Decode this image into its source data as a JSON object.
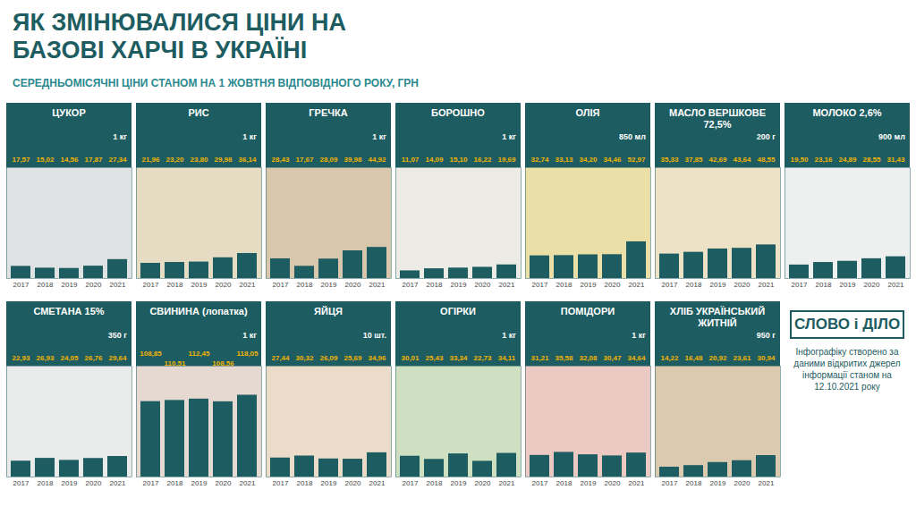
{
  "title": "ЯК ЗМІНЮВАЛИСЯ ЦІНИ НА БАЗОВІ ХАРЧІ В УКРАЇНІ",
  "subtitle": "СЕРЕДНЬОМІСЯЧНІ ЦІНИ СТАНОМ НА 1 ЖОВТНЯ ВІДПОВІДНОГО РОКУ, ГРН",
  "logo": "СЛОВО і ДІЛО",
  "caption": "Інфографіку створено за даними відкритих джерел інформації станом на 12.10.2021 року",
  "chart_data": [
    {
      "type": "bar",
      "title": "ЦУКОР",
      "subtitle": "1 кг",
      "categories": [
        "2017",
        "2018",
        "2019",
        "2020",
        "2021"
      ],
      "values": [
        17.57,
        15.02,
        14.56,
        17.87,
        27.34
      ],
      "value_labels": [
        "17,57",
        "15,02",
        "14,56",
        "17,87",
        "27,34"
      ],
      "color": "#1d5c60",
      "ylim": [
        0,
        160
      ],
      "yticks": [],
      "data_labels": true,
      "tick_labels": "x",
      "grid": false
    },
    {
      "type": "bar",
      "title": "РИС",
      "subtitle": "1 кг",
      "categories": [
        "2017",
        "2018",
        "2019",
        "2020",
        "2021"
      ],
      "values": [
        21.96,
        23.2,
        23.8,
        29.98,
        36.14
      ],
      "value_labels": [
        "21,96",
        "23,20",
        "23,80",
        "29,98",
        "36,14"
      ],
      "color": "#1d5c60",
      "ylim": [
        0,
        160
      ],
      "yticks": [],
      "data_labels": true,
      "tick_labels": "x",
      "grid": false
    },
    {
      "type": "bar",
      "title": "ГРЕЧКА",
      "subtitle": "1 кг",
      "categories": [
        "2017",
        "2018",
        "2019",
        "2020",
        "2021"
      ],
      "values": [
        28.43,
        17.67,
        28.09,
        39.98,
        44.92
      ],
      "value_labels": [
        "28,43",
        "17,67",
        "28,09",
        "39,98",
        "44,92"
      ],
      "color": "#1d5c60",
      "ylim": [
        0,
        160
      ],
      "yticks": [],
      "data_labels": true,
      "tick_labels": "x",
      "grid": false
    },
    {
      "type": "bar",
      "title": "БОРОШНО",
      "subtitle": "1 кг",
      "categories": [
        "2017",
        "2018",
        "2019",
        "2020",
        "2021"
      ],
      "values": [
        11.07,
        14.09,
        15.1,
        16.22,
        19.69
      ],
      "value_labels": [
        "11,07",
        "14,09",
        "15,10",
        "16,22",
        "19,69"
      ],
      "color": "#1d5c60",
      "ylim": [
        0,
        160
      ],
      "yticks": [],
      "data_labels": true,
      "tick_labels": "x",
      "grid": false
    },
    {
      "type": "bar",
      "title": "ОЛІЯ",
      "subtitle": "850 мл",
      "categories": [
        "2017",
        "2018",
        "2019",
        "2020",
        "2021"
      ],
      "values": [
        32.74,
        33.13,
        34.2,
        34.46,
        52.97
      ],
      "value_labels": [
        "32,74",
        "33,13",
        "34,20",
        "34,46",
        "52,97"
      ],
      "color": "#1d5c60",
      "ylim": [
        0,
        160
      ],
      "yticks": [],
      "data_labels": true,
      "tick_labels": "x",
      "grid": false
    },
    {
      "type": "bar",
      "title": "МАСЛО ВЕРШКОВЕ 72,5%",
      "subtitle": "200 г",
      "categories": [
        "2017",
        "2018",
        "2019",
        "2020",
        "2021"
      ],
      "values": [
        35.33,
        37.85,
        42.69,
        43.64,
        48.55
      ],
      "value_labels": [
        "35,33",
        "37,85",
        "42,69",
        "43,64",
        "48,55"
      ],
      "color": "#1d5c60",
      "ylim": [
        0,
        160
      ],
      "yticks": [],
      "data_labels": true,
      "tick_labels": "x",
      "grid": false
    },
    {
      "type": "bar",
      "title": "МОЛОКО 2,6%",
      "subtitle": "900 мл",
      "categories": [
        "2017",
        "2018",
        "2019",
        "2020",
        "2021"
      ],
      "values": [
        19.5,
        23.16,
        24.89,
        28.55,
        31.43
      ],
      "value_labels": [
        "19,50",
        "23,16",
        "24,89",
        "28,55",
        "31,43"
      ],
      "color": "#1d5c60",
      "ylim": [
        0,
        160
      ],
      "yticks": [],
      "data_labels": true,
      "tick_labels": "x",
      "grid": false
    },
    {
      "type": "bar",
      "title": "СМЕТАНА 15%",
      "subtitle": "350 г",
      "categories": [
        "2017",
        "2018",
        "2019",
        "2020",
        "2021"
      ],
      "values": [
        22.93,
        26.93,
        24.05,
        26.76,
        29.64
      ],
      "value_labels": [
        "22,93",
        "26,93",
        "24,05",
        "26,76",
        "29,64"
      ],
      "color": "#1d5c60",
      "ylim": [
        0,
        160
      ],
      "yticks": [],
      "data_labels": true,
      "tick_labels": "x",
      "grid": false
    },
    {
      "type": "bar",
      "title": "СВИНИНА (лопатка)",
      "subtitle": "1 кг",
      "categories": [
        "2017",
        "2018",
        "2019",
        "2020",
        "2021"
      ],
      "values": [
        108.85,
        110.51,
        112.45,
        108.56,
        118.05
      ],
      "value_labels": [
        "108,85",
        "110,51",
        "112,45",
        "108,56",
        "118,05"
      ],
      "color": "#1d5c60",
      "ylim": [
        0,
        160
      ],
      "yticks": [],
      "data_labels": true,
      "tick_labels": "x",
      "grid": false
    },
    {
      "type": "bar",
      "title": "ЯЙЦЯ",
      "subtitle": "10 шт.",
      "categories": [
        "2017",
        "2018",
        "2019",
        "2020",
        "2021"
      ],
      "values": [
        27.44,
        30.32,
        26.09,
        25.69,
        34.96
      ],
      "value_labels": [
        "27,44",
        "30,32",
        "26,09",
        "25,69",
        "34,96"
      ],
      "color": "#1d5c60",
      "ylim": [
        0,
        160
      ],
      "yticks": [],
      "data_labels": true,
      "tick_labels": "x",
      "grid": false
    },
    {
      "type": "bar",
      "title": "ОГІРКИ",
      "subtitle": "1 кг",
      "categories": [
        "2017",
        "2018",
        "2019",
        "2020",
        "2021"
      ],
      "values": [
        30.01,
        25.43,
        33.34,
        22.73,
        34.11
      ],
      "value_labels": [
        "30,01",
        "25,43",
        "33,34",
        "22,73",
        "34,11"
      ],
      "color": "#1d5c60",
      "ylim": [
        0,
        160
      ],
      "yticks": [],
      "data_labels": true,
      "tick_labels": "x",
      "grid": false
    },
    {
      "type": "bar",
      "title": "ПОМІДОРИ",
      "subtitle": "1 кг",
      "categories": [
        "2017",
        "2018",
        "2019",
        "2020",
        "2021"
      ],
      "values": [
        31.21,
        35.58,
        32.08,
        30.47,
        34.64
      ],
      "value_labels": [
        "31,21",
        "35,58",
        "32,08",
        "30,47",
        "34,64"
      ],
      "color": "#1d5c60",
      "ylim": [
        0,
        160
      ],
      "yticks": [],
      "data_labels": true,
      "tick_labels": "x",
      "grid": false
    },
    {
      "type": "bar",
      "title": "ХЛІБ УКРАЇНСЬКИЙ ЖИТНІЙ",
      "subtitle": "950 г",
      "categories": [
        "2017",
        "2018",
        "2019",
        "2020",
        "2021"
      ],
      "values": [
        14.22,
        16.48,
        20.92,
        23.61,
        30.94
      ],
      "value_labels": [
        "14,22",
        "16,48",
        "20,92",
        "23,61",
        "30,94"
      ],
      "color": "#1d5c60",
      "ylim": [
        0,
        160
      ],
      "yticks": [],
      "data_labels": true,
      "tick_labels": "x",
      "grid": false
    }
  ]
}
